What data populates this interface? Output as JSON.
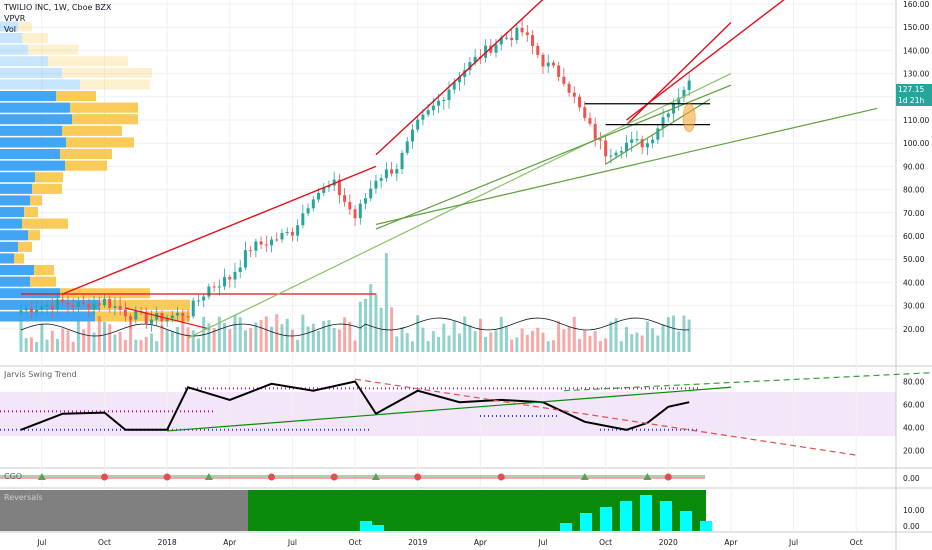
{
  "header": {
    "title": "TWILIO INC, 1W, Cboe BZX",
    "indicator1": "VPVR",
    "indicator2": "Vol"
  },
  "panes": {
    "jarvis": "Jarvis Swing Trend",
    "cgo": "CGO",
    "reversals": "Reversals"
  },
  "price_tag": {
    "last": "127.15",
    "countdown": "1d 21h"
  },
  "colors": {
    "up": "#26a69a",
    "down": "#ef5350",
    "trend_red": "#e0101a",
    "trend_green": "#5a9e3a",
    "trend_lightgreen": "#8cc26a",
    "vpvr_up": "#2196f3",
    "vpvr_down": "#f9c23c",
    "cyan": "#00ffff",
    "dark_green": "#098b09"
  },
  "chart_data": [
    {
      "type": "line",
      "title": "TWILIO INC, 1W, Cboe BZX",
      "ylim": [
        10,
        160
      ],
      "y_ticks": [
        "160.00",
        "150.00",
        "140.00",
        "130.00",
        "120.00",
        "110.00",
        "100.00",
        "90.00",
        "80.00",
        "70.00",
        "60.00",
        "50.00",
        "40.00",
        "30.00",
        "20.00"
      ],
      "x_ticks": [
        "Jul",
        "Oct",
        "2018",
        "Apr",
        "Jul",
        "Oct",
        "2019",
        "Apr",
        "Jul",
        "Oct",
        "2020",
        "Apr",
        "Jul",
        "Oct"
      ],
      "close_series": [
        {
          "x": "2017-06",
          "y": 28
        },
        {
          "x": "2017-07",
          "y": 30
        },
        {
          "x": "2017-08",
          "y": 31
        },
        {
          "x": "2017-09",
          "y": 30
        },
        {
          "x": "2017-10",
          "y": 32
        },
        {
          "x": "2017-11",
          "y": 27
        },
        {
          "x": "2017-12",
          "y": 24
        },
        {
          "x": "2018-01",
          "y": 25
        },
        {
          "x": "2018-02",
          "y": 27
        },
        {
          "x": "2018-03",
          "y": 38
        },
        {
          "x": "2018-04",
          "y": 42
        },
        {
          "x": "2018-05",
          "y": 55
        },
        {
          "x": "2018-06",
          "y": 58
        },
        {
          "x": "2018-07",
          "y": 62
        },
        {
          "x": "2018-08",
          "y": 78
        },
        {
          "x": "2018-09",
          "y": 82
        },
        {
          "x": "2018-10",
          "y": 68
        },
        {
          "x": "2018-11",
          "y": 85
        },
        {
          "x": "2018-12",
          "y": 90
        },
        {
          "x": "2019-01",
          "y": 108
        },
        {
          "x": "2019-02",
          "y": 118
        },
        {
          "x": "2019-03",
          "y": 130
        },
        {
          "x": "2019-04",
          "y": 138
        },
        {
          "x": "2019-05",
          "y": 145
        },
        {
          "x": "2019-06",
          "y": 148
        },
        {
          "x": "2019-07",
          "y": 135
        },
        {
          "x": "2019-08",
          "y": 128
        },
        {
          "x": "2019-09",
          "y": 110
        },
        {
          "x": "2019-10",
          "y": 96
        },
        {
          "x": "2019-11",
          "y": 100
        },
        {
          "x": "2019-12",
          "y": 100
        },
        {
          "x": "2020-01",
          "y": 115
        },
        {
          "x": "2020-02",
          "y": 127
        }
      ],
      "volume_label": "Vol"
    },
    {
      "type": "line",
      "title": "Jarvis Swing Trend",
      "ylim": [
        10,
        90
      ],
      "y_ticks": [
        "80.00",
        "60.00",
        "40.00",
        "20.00"
      ],
      "series": [
        {
          "values": [
            {
              "x": "2017-06",
              "y": 38
            },
            {
              "x": "2017-08",
              "y": 52
            },
            {
              "x": "2017-10",
              "y": 53
            },
            {
              "x": "2017-11",
              "y": 38
            },
            {
              "x": "2018-01",
              "y": 38
            },
            {
              "x": "2018-02",
              "y": 75
            },
            {
              "x": "2018-04",
              "y": 64
            },
            {
              "x": "2018-06",
              "y": 78
            },
            {
              "x": "2018-08",
              "y": 72
            },
            {
              "x": "2018-10",
              "y": 80
            },
            {
              "x": "2018-11",
              "y": 52
            },
            {
              "x": "2019-01",
              "y": 72
            },
            {
              "x": "2019-03",
              "y": 62
            },
            {
              "x": "2019-05",
              "y": 64
            },
            {
              "x": "2019-07",
              "y": 62
            },
            {
              "x": "2019-09",
              "y": 45
            },
            {
              "x": "2019-11",
              "y": 38
            },
            {
              "x": "2019-12",
              "y": 44
            },
            {
              "x": "2020-01",
              "y": 58
            },
            {
              "x": "2020-02",
              "y": 62
            }
          ]
        }
      ]
    },
    {
      "type": "line",
      "title": "CGO",
      "y_ticks": [
        "0.00"
      ]
    },
    {
      "type": "area",
      "title": "Reversals",
      "y_ticks": [
        "10.00",
        "0.00"
      ]
    }
  ]
}
